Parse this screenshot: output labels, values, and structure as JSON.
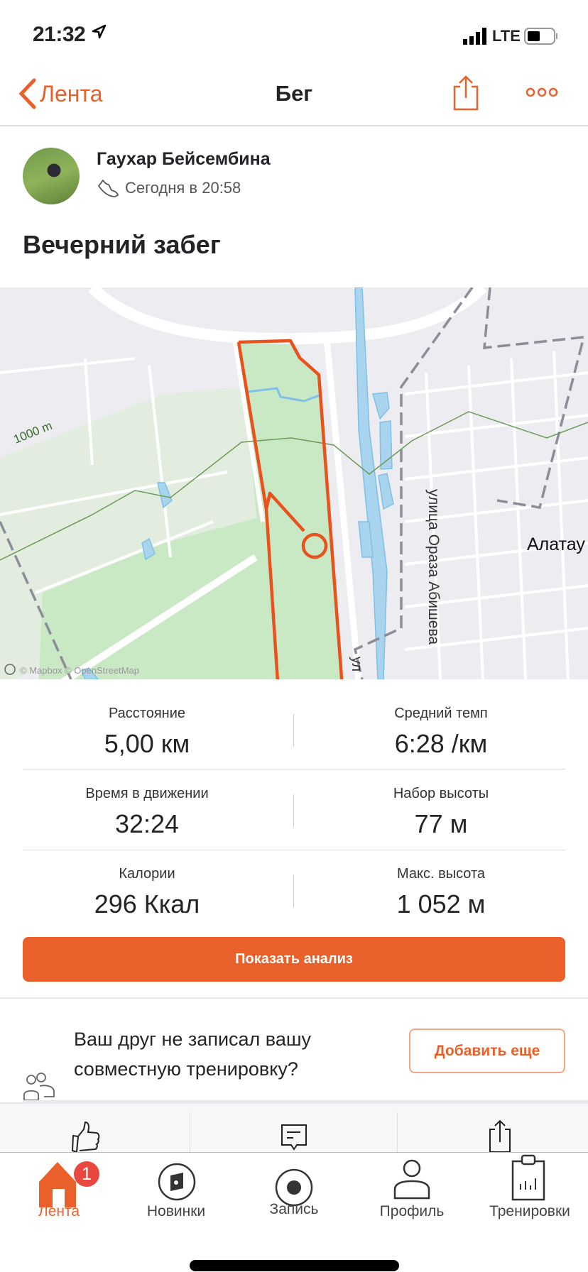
{
  "status_bar": {
    "time": "21:32",
    "network": "LTE",
    "icons": [
      "location-arrow-icon",
      "signal-icon",
      "battery-icon"
    ]
  },
  "nav": {
    "back_label": "Лента",
    "title": "Бег",
    "icons": [
      "chevron-left-icon",
      "share-icon",
      "more-icon"
    ]
  },
  "athlete": {
    "name": "Гаухар Бейсембина",
    "date": "Сегодня в 20:58",
    "icon": "shoe-icon"
  },
  "activity_title": "Вечерний забег",
  "map": {
    "contour_label": "1000 m",
    "street_label": "улица Ораза Абишева",
    "street_label_2": "ул",
    "district_label": "Алатау",
    "attribution": "© Mapbox © OpenStreetMap",
    "route_color": "#e9521d",
    "park_color": "#c9e8c4",
    "water_color": "#a9d4ee"
  },
  "stats": [
    {
      "label": "Расстояние",
      "value": "5,00 км"
    },
    {
      "label": "Средний темп",
      "value": "6:28 /км"
    },
    {
      "label": "Время в движении",
      "value": "32:24"
    },
    {
      "label": "Набор высоты",
      "value": "77 м"
    },
    {
      "label": "Калории",
      "value": "296 Ккал"
    },
    {
      "label": "Макс. высота",
      "value": "1 052 м"
    }
  ],
  "analysis_button": "Показать анализ",
  "friend_prompt": {
    "line1": "Ваш друг не записал вашу",
    "line2": "совместную тренировку?",
    "button": "Добавить еще",
    "icon": "group-icon"
  },
  "actions": [
    "thumbs-up-icon",
    "comment-icon",
    "share-icon"
  ],
  "tabs": [
    {
      "label": "Лента",
      "icon": "home-icon",
      "badge": "1",
      "active": true
    },
    {
      "label": "Новинки",
      "icon": "compass-icon"
    },
    {
      "label": "Запись",
      "icon": "record-icon"
    },
    {
      "label": "Профиль",
      "icon": "profile-icon"
    },
    {
      "label": "Тренировки",
      "icon": "clipboard-icon"
    }
  ],
  "accent_color": "#e9602a"
}
